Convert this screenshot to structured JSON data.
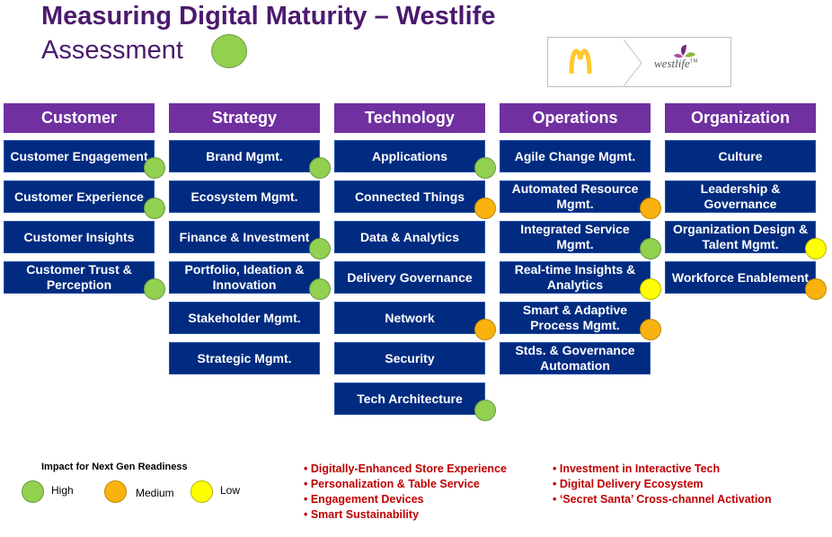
{
  "title": "Measuring Digital Maturity – Westlife",
  "subtitle": "Assessment",
  "title_indicator": "high",
  "logos": {
    "mcd_icon": "mcdonalds-arches-logo",
    "westlife_text": "westlife",
    "westlife_tm": "TM"
  },
  "colors": {
    "header": "#7030a0",
    "item": "#002b80",
    "high": "#92d050",
    "medium": "#f9b20e",
    "low": "#ffff00",
    "bullets": "#c00000",
    "title": "#4b1a6e"
  },
  "columns": [
    {
      "header": "Customer",
      "items": [
        {
          "label": "Customer Engagement",
          "rating": "high"
        },
        {
          "label": "Customer Experience",
          "rating": "high"
        },
        {
          "label": "Customer Insights",
          "rating": ""
        },
        {
          "label": "Customer Trust & Perception",
          "rating": "high"
        }
      ]
    },
    {
      "header": "Strategy",
      "items": [
        {
          "label": "Brand Mgmt.",
          "rating": "high"
        },
        {
          "label": "Ecosystem Mgmt.",
          "rating": ""
        },
        {
          "label": "Finance  & Investment",
          "rating": "high"
        },
        {
          "label": "Portfolio, Ideation & Innovation",
          "rating": "high"
        },
        {
          "label": "Stakeholder Mgmt.",
          "rating": ""
        },
        {
          "label": "Strategic Mgmt.",
          "rating": ""
        }
      ]
    },
    {
      "header": "Technology",
      "items": [
        {
          "label": "Applications",
          "rating": "high"
        },
        {
          "label": "Connected Things",
          "rating": "medium"
        },
        {
          "label": "Data & Analytics",
          "rating": ""
        },
        {
          "label": "Delivery Governance",
          "rating": ""
        },
        {
          "label": "Network",
          "rating": "medium"
        },
        {
          "label": "Security",
          "rating": ""
        },
        {
          "label": "Tech Architecture",
          "rating": "high"
        }
      ]
    },
    {
      "header": "Operations",
      "items": [
        {
          "label": "Agile Change Mgmt.",
          "rating": ""
        },
        {
          "label": "Automated Resource Mgmt.",
          "rating": "medium"
        },
        {
          "label": "Integrated Service Mgmt.",
          "rating": "high"
        },
        {
          "label": "Real-time Insights & Analytics",
          "rating": "low"
        },
        {
          "label": "Smart & Adaptive Process Mgmt.",
          "rating": "medium"
        },
        {
          "label": "Stds. & Governance Automation",
          "rating": ""
        }
      ]
    },
    {
      "header": "Organization",
      "items": [
        {
          "label": "Culture",
          "rating": ""
        },
        {
          "label": "Leadership & Governance",
          "rating": ""
        },
        {
          "label": "Organization Design & Talent Mgmt.",
          "rating": "low"
        },
        {
          "label": "Workforce Enablement",
          "rating": "medium"
        }
      ]
    }
  ],
  "legend": {
    "title": "Impact for Next Gen Readiness",
    "items": [
      {
        "label": "High",
        "rating": "high"
      },
      {
        "label": "Medium",
        "rating": "medium"
      },
      {
        "label": "Low",
        "rating": "low"
      }
    ]
  },
  "initiatives_left": [
    "• Digitally-Enhanced Store Experience",
    "• Personalization & Table Service",
    "• Engagement Devices",
    "• Smart Sustainability"
  ],
  "initiatives_right": [
    "• Investment in Interactive Tech",
    "• Digital Delivery Ecosystem",
    "• ‘Secret Santa’ Cross-channel Activation"
  ]
}
